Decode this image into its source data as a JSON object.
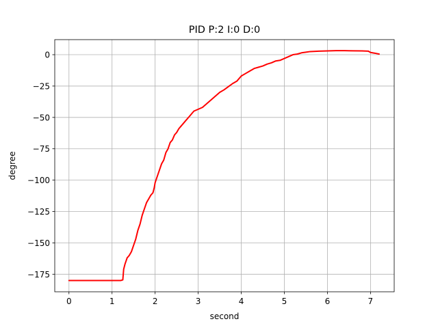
{
  "chart_data": {
    "type": "line",
    "title": "PID P:2 I:0 D:0",
    "xlabel": "second",
    "ylabel": "degree",
    "xlim": [
      -0.33,
      7.55
    ],
    "ylim": [
      -189,
      12
    ],
    "x_ticks": [
      0,
      1,
      2,
      3,
      4,
      5,
      6,
      7
    ],
    "x_tick_labels": [
      "0",
      "1",
      "2",
      "3",
      "4",
      "5",
      "6",
      "7"
    ],
    "y_ticks": [
      0,
      -25,
      -50,
      -75,
      -100,
      -125,
      -150,
      -175
    ],
    "y_tick_labels": [
      "0",
      "−25",
      "−50",
      "−75",
      "−100",
      "−125",
      "−150",
      "−175"
    ],
    "grid": true,
    "colors": {
      "line": "#ff0000",
      "grid": "#b0b0b0",
      "axes": "#000000"
    },
    "series": [
      {
        "x": [
          0,
          0.5,
          1.0,
          1.2,
          1.25,
          1.27,
          1.3,
          1.32,
          1.35,
          1.4,
          1.45,
          1.5,
          1.55,
          1.6,
          1.65,
          1.7,
          1.75,
          1.8,
          1.85,
          1.9,
          1.95,
          1.98,
          2.0,
          2.05,
          2.1,
          2.15,
          2.2,
          2.25,
          2.3,
          2.35,
          2.4,
          2.45,
          2.5,
          2.55,
          2.6,
          2.7,
          2.8,
          2.9,
          3.0,
          3.1,
          3.2,
          3.3,
          3.4,
          3.5,
          3.6,
          3.7,
          3.8,
          3.9,
          4.0,
          4.1,
          4.2,
          4.3,
          4.4,
          4.5,
          4.6,
          4.7,
          4.8,
          4.9,
          5.0,
          5.1,
          5.2,
          5.3,
          5.4,
          5.5,
          5.6,
          5.8,
          6.0,
          6.2,
          6.4,
          6.6,
          6.8,
          6.95,
          7.0,
          7.1,
          7.2
        ],
        "y": [
          -180,
          -180,
          -180,
          -180,
          -179.5,
          -171,
          -167,
          -165,
          -162,
          -160,
          -157,
          -152,
          -147,
          -140,
          -135,
          -128,
          -123,
          -118,
          -115,
          -112,
          -110,
          -106,
          -102,
          -97,
          -92,
          -87,
          -84,
          -78,
          -75,
          -70,
          -68,
          -64,
          -62,
          -59,
          -57,
          -53,
          -49,
          -45,
          -43.5,
          -42,
          -39,
          -36,
          -33,
          -30,
          -28,
          -25.5,
          -23,
          -21,
          -17,
          -15,
          -13,
          -11,
          -10,
          -9,
          -7.5,
          -6.5,
          -5,
          -4.5,
          -3,
          -1.5,
          0,
          0.5,
          1.5,
          2,
          2.5,
          2.8,
          3,
          3.2,
          3.2,
          3.1,
          3.0,
          2.8,
          1.8,
          1.2,
          0.5
        ]
      }
    ]
  }
}
